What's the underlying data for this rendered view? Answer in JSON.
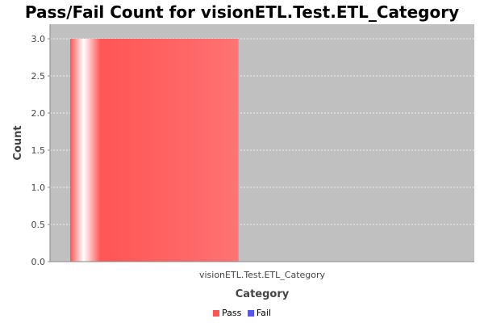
{
  "chart_data": {
    "type": "bar",
    "title": "Pass/Fail Count for visionETL.Test.ETL_Category",
    "xlabel": "Category",
    "ylabel": "Count",
    "categories": [
      "visionETL.Test.ETL_Category"
    ],
    "series": [
      {
        "name": "Pass",
        "color": "#ff5555",
        "values": [
          3.0
        ]
      },
      {
        "name": "Fail",
        "color": "#5555ff",
        "values": [
          0.0
        ]
      }
    ],
    "ylim": [
      0,
      3.0
    ],
    "yticks": [
      "0.0",
      "0.5",
      "1.0",
      "1.5",
      "2.0",
      "2.5",
      "3.0"
    ],
    "grid": true,
    "background": "#c0c0c0",
    "legend_position": "bottom"
  }
}
